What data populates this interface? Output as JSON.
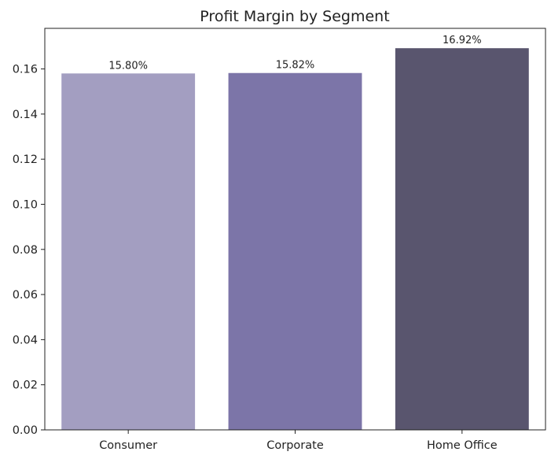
{
  "chart_data": {
    "type": "bar",
    "title": "Profit Margin by Segment",
    "xlabel": "",
    "ylabel": "",
    "categories": [
      "Consumer",
      "Corporate",
      "Home Office"
    ],
    "values": [
      0.158,
      0.1582,
      0.1692
    ],
    "data_labels": [
      "15.80%",
      "15.82%",
      "16.92%"
    ],
    "colors": [
      "#a39ec1",
      "#7c75a8",
      "#59556e"
    ],
    "ylim": [
      0,
      0.178
    ],
    "yticks": [
      0.0,
      0.02,
      0.04,
      0.06,
      0.08,
      0.1,
      0.12,
      0.14,
      0.16
    ],
    "ytick_labels": [
      "0.00",
      "0.02",
      "0.04",
      "0.06",
      "0.08",
      "0.10",
      "0.12",
      "0.14",
      "0.16"
    ],
    "grid": false,
    "legend": "none"
  }
}
